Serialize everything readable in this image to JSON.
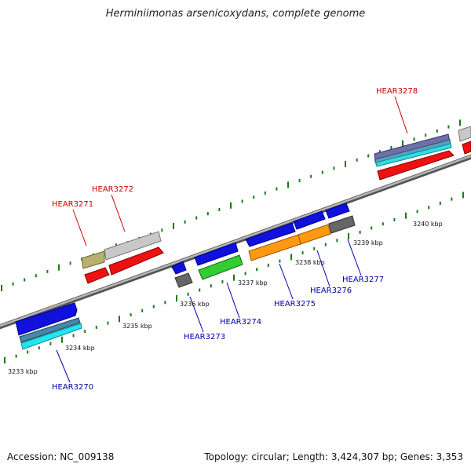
{
  "title": "Herminiimonas arsenicoxydans, complete genome",
  "accession": "Accession: NC_009138",
  "topology": "Topology: circular; Length: 3,424,307 bp; Genes: 3,353",
  "colors": {
    "forward_label": "#cc0000",
    "reverse_label": "#0000aa",
    "backbone": "#8a8a8a",
    "tick": "#1a7a1a"
  },
  "kbp_labels": [
    {
      "id": "kbp-3233",
      "text": "3233 kbp"
    },
    {
      "id": "kbp-3234",
      "text": "3234 kbp"
    },
    {
      "id": "kbp-3235",
      "text": "3235 kbp"
    },
    {
      "id": "kbp-3236",
      "text": "3236 kbp"
    },
    {
      "id": "kbp-3237",
      "text": "3237 kbp"
    },
    {
      "id": "kbp-3238",
      "text": "3238 kbp"
    },
    {
      "id": "kbp-3239",
      "text": "3239 kbp"
    },
    {
      "id": "kbp-3240",
      "text": "3240 kbp"
    }
  ],
  "gene_labels": [
    {
      "id": "HEAR3270",
      "text": "HEAR3270",
      "strand": "reverse"
    },
    {
      "id": "HEAR3271",
      "text": "HEAR3271",
      "strand": "forward"
    },
    {
      "id": "HEAR3272",
      "text": "HEAR3272",
      "strand": "forward"
    },
    {
      "id": "HEAR3273",
      "text": "HEAR3273",
      "strand": "reverse"
    },
    {
      "id": "HEAR3274",
      "text": "HEAR3274",
      "strand": "reverse"
    },
    {
      "id": "HEAR3275",
      "text": "HEAR3275",
      "strand": "reverse"
    },
    {
      "id": "HEAR3276",
      "text": "HEAR3276",
      "strand": "reverse"
    },
    {
      "id": "HEAR3277",
      "text": "HEAR3277",
      "strand": "reverse"
    },
    {
      "id": "HEAR3278",
      "text": "HEAR3278",
      "strand": "forward"
    }
  ]
}
